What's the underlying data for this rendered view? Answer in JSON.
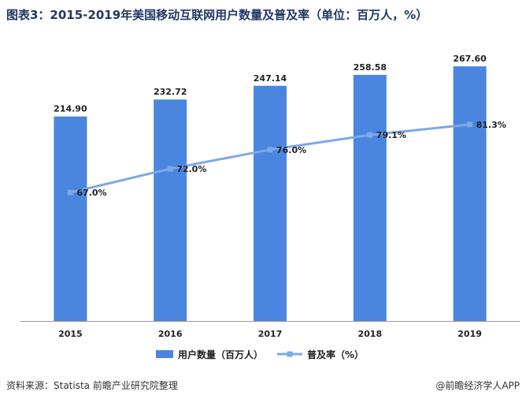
{
  "title": "图表3：2015-2019年美国移动互联网用户数量及普及率（单位：百万人，%）",
  "source": "资料来源：Statista  前瞻产业研究院整理",
  "credit": "@前瞻经济学人APP",
  "colors": {
    "bar": "#4a86e0",
    "line": "#7fa8e6",
    "axis": "#999999"
  },
  "chart_data": {
    "type": "bar",
    "categories": [
      "2015",
      "2016",
      "2017",
      "2018",
      "2019"
    ],
    "series": [
      {
        "name": "用户数量（百万人）",
        "type": "bar",
        "values": [
          214.9,
          232.72,
          247.14,
          258.58,
          267.6
        ],
        "labels": [
          "214.90",
          "232.72",
          "247.14",
          "258.58",
          "267.60"
        ]
      },
      {
        "name": "普及率（%）",
        "type": "line",
        "values": [
          67.0,
          72.0,
          76.0,
          79.1,
          81.3
        ],
        "labels": [
          "67.0%",
          "72.0%",
          "76.0%",
          "79.1%",
          "81.3%"
        ]
      }
    ],
    "bar_ylim": [
      0,
      300
    ],
    "line_ylim": [
      40,
      100
    ],
    "legend_position": "bottom-center"
  }
}
